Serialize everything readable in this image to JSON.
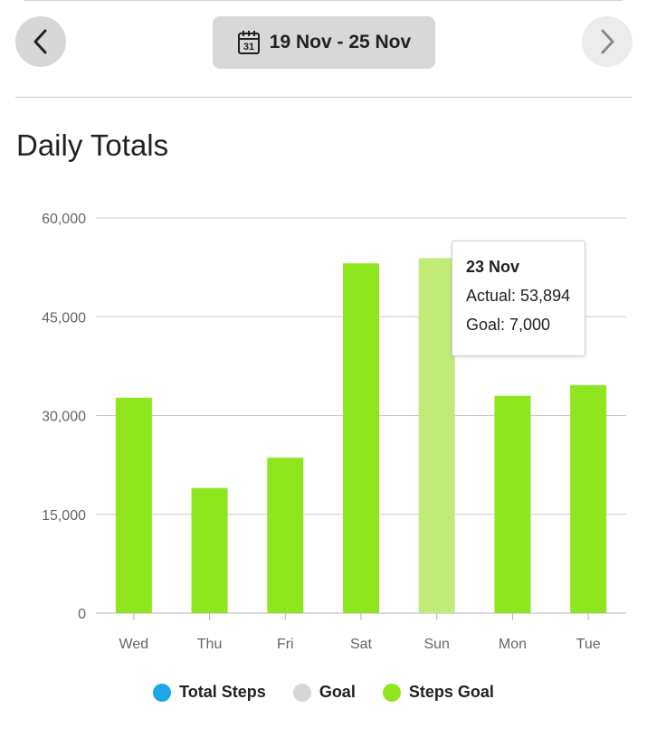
{
  "header": {
    "date_range": "19 Nov - 25 Nov",
    "calendar_day": "31"
  },
  "section": {
    "title": "Daily Totals"
  },
  "legend": [
    {
      "label": "Total Steps",
      "color": "#1ba7e8"
    },
    {
      "label": "Goal",
      "color": "#d6d6d6"
    },
    {
      "label": "Steps Goal",
      "color": "#8fe61e"
    }
  ],
  "tooltip": {
    "title": "23 Nov",
    "actual": "Actual: 53,894",
    "goal": "Goal: 7,000"
  },
  "colors": {
    "bar": "#8fe61e",
    "bar_highlight": "#c2ea78",
    "grid": "#cccccc"
  },
  "chart_data": {
    "type": "bar",
    "categories": [
      "Wed",
      "Thu",
      "Fri",
      "Sat",
      "Sun",
      "Mon",
      "Tue"
    ],
    "values": [
      32700,
      19000,
      23600,
      53100,
      53894,
      33000,
      34600
    ],
    "highlighted_category": "Sun",
    "ylim": [
      0,
      60000
    ],
    "yticks": [
      0,
      15000,
      30000,
      45000,
      60000
    ],
    "ytick_labels": [
      "0",
      "15,000",
      "30,000",
      "45,000",
      "60,000"
    ],
    "grid": true
  }
}
